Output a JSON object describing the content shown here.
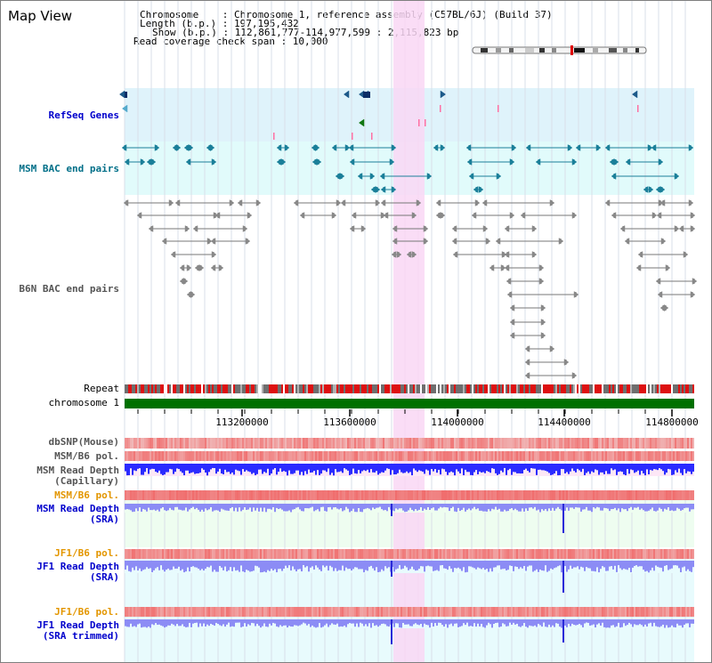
{
  "header": {
    "title": "Map View",
    "chromosome_line": "Chromosome    : Chromosome 1, reference assembly (C57BL/6J) (Build 37)",
    "length_line": "Length (b.p.) : 197,195,432",
    "show_line": "Show (b.p.) : 112,861,777-114,977,599 : 2,115,823 bp",
    "coverage_line": "Read coverage check span : 10,000"
  },
  "tracks": {
    "refseq": "RefSeq Genes",
    "msm_bac": "MSM BAC end pairs",
    "b6n_bac": "B6N BAC end pairs",
    "repeat": "Repeat",
    "chromosome": "chromosome 1",
    "dbsnp": "dbSNP(Mouse)",
    "msm_b6_pol_1": "MSM/B6 pol.",
    "msm_depth_cap_1": "MSM Read Depth",
    "msm_depth_cap_2": "(Capillary)",
    "msm_b6_pol_2": "MSM/B6 pol.",
    "msm_depth_sra_1": "MSM Read Depth",
    "msm_depth_sra_2": "(SRA)",
    "jf1_b6_pol_1": "JF1/B6 pol.",
    "jf1_depth_sra_1": "JF1 Read Depth",
    "jf1_depth_sra_2": "(SRA)",
    "jf1_b6_pol_2": "JF1/B6 pol.",
    "jf1_depth_trim_1": "JF1 Read Depth",
    "jf1_depth_trim_2": "(SRA trimmed)"
  },
  "axis": {
    "ticks": [
      "113200000",
      "113600000",
      "114000000",
      "114400000",
      "114800000"
    ]
  },
  "colors": {
    "refseq_bg": "#dff3fb",
    "msm_bg": "#e1fbfb",
    "highlight": "#f9d7f4",
    "chromosome": "#007000",
    "snp": "#ee3333",
    "depth_blue": "#2b2bff",
    "depth_light": "#8c8cf5",
    "msm_teal": "#1a7f99",
    "b6n_gray": "#777777"
  }
}
